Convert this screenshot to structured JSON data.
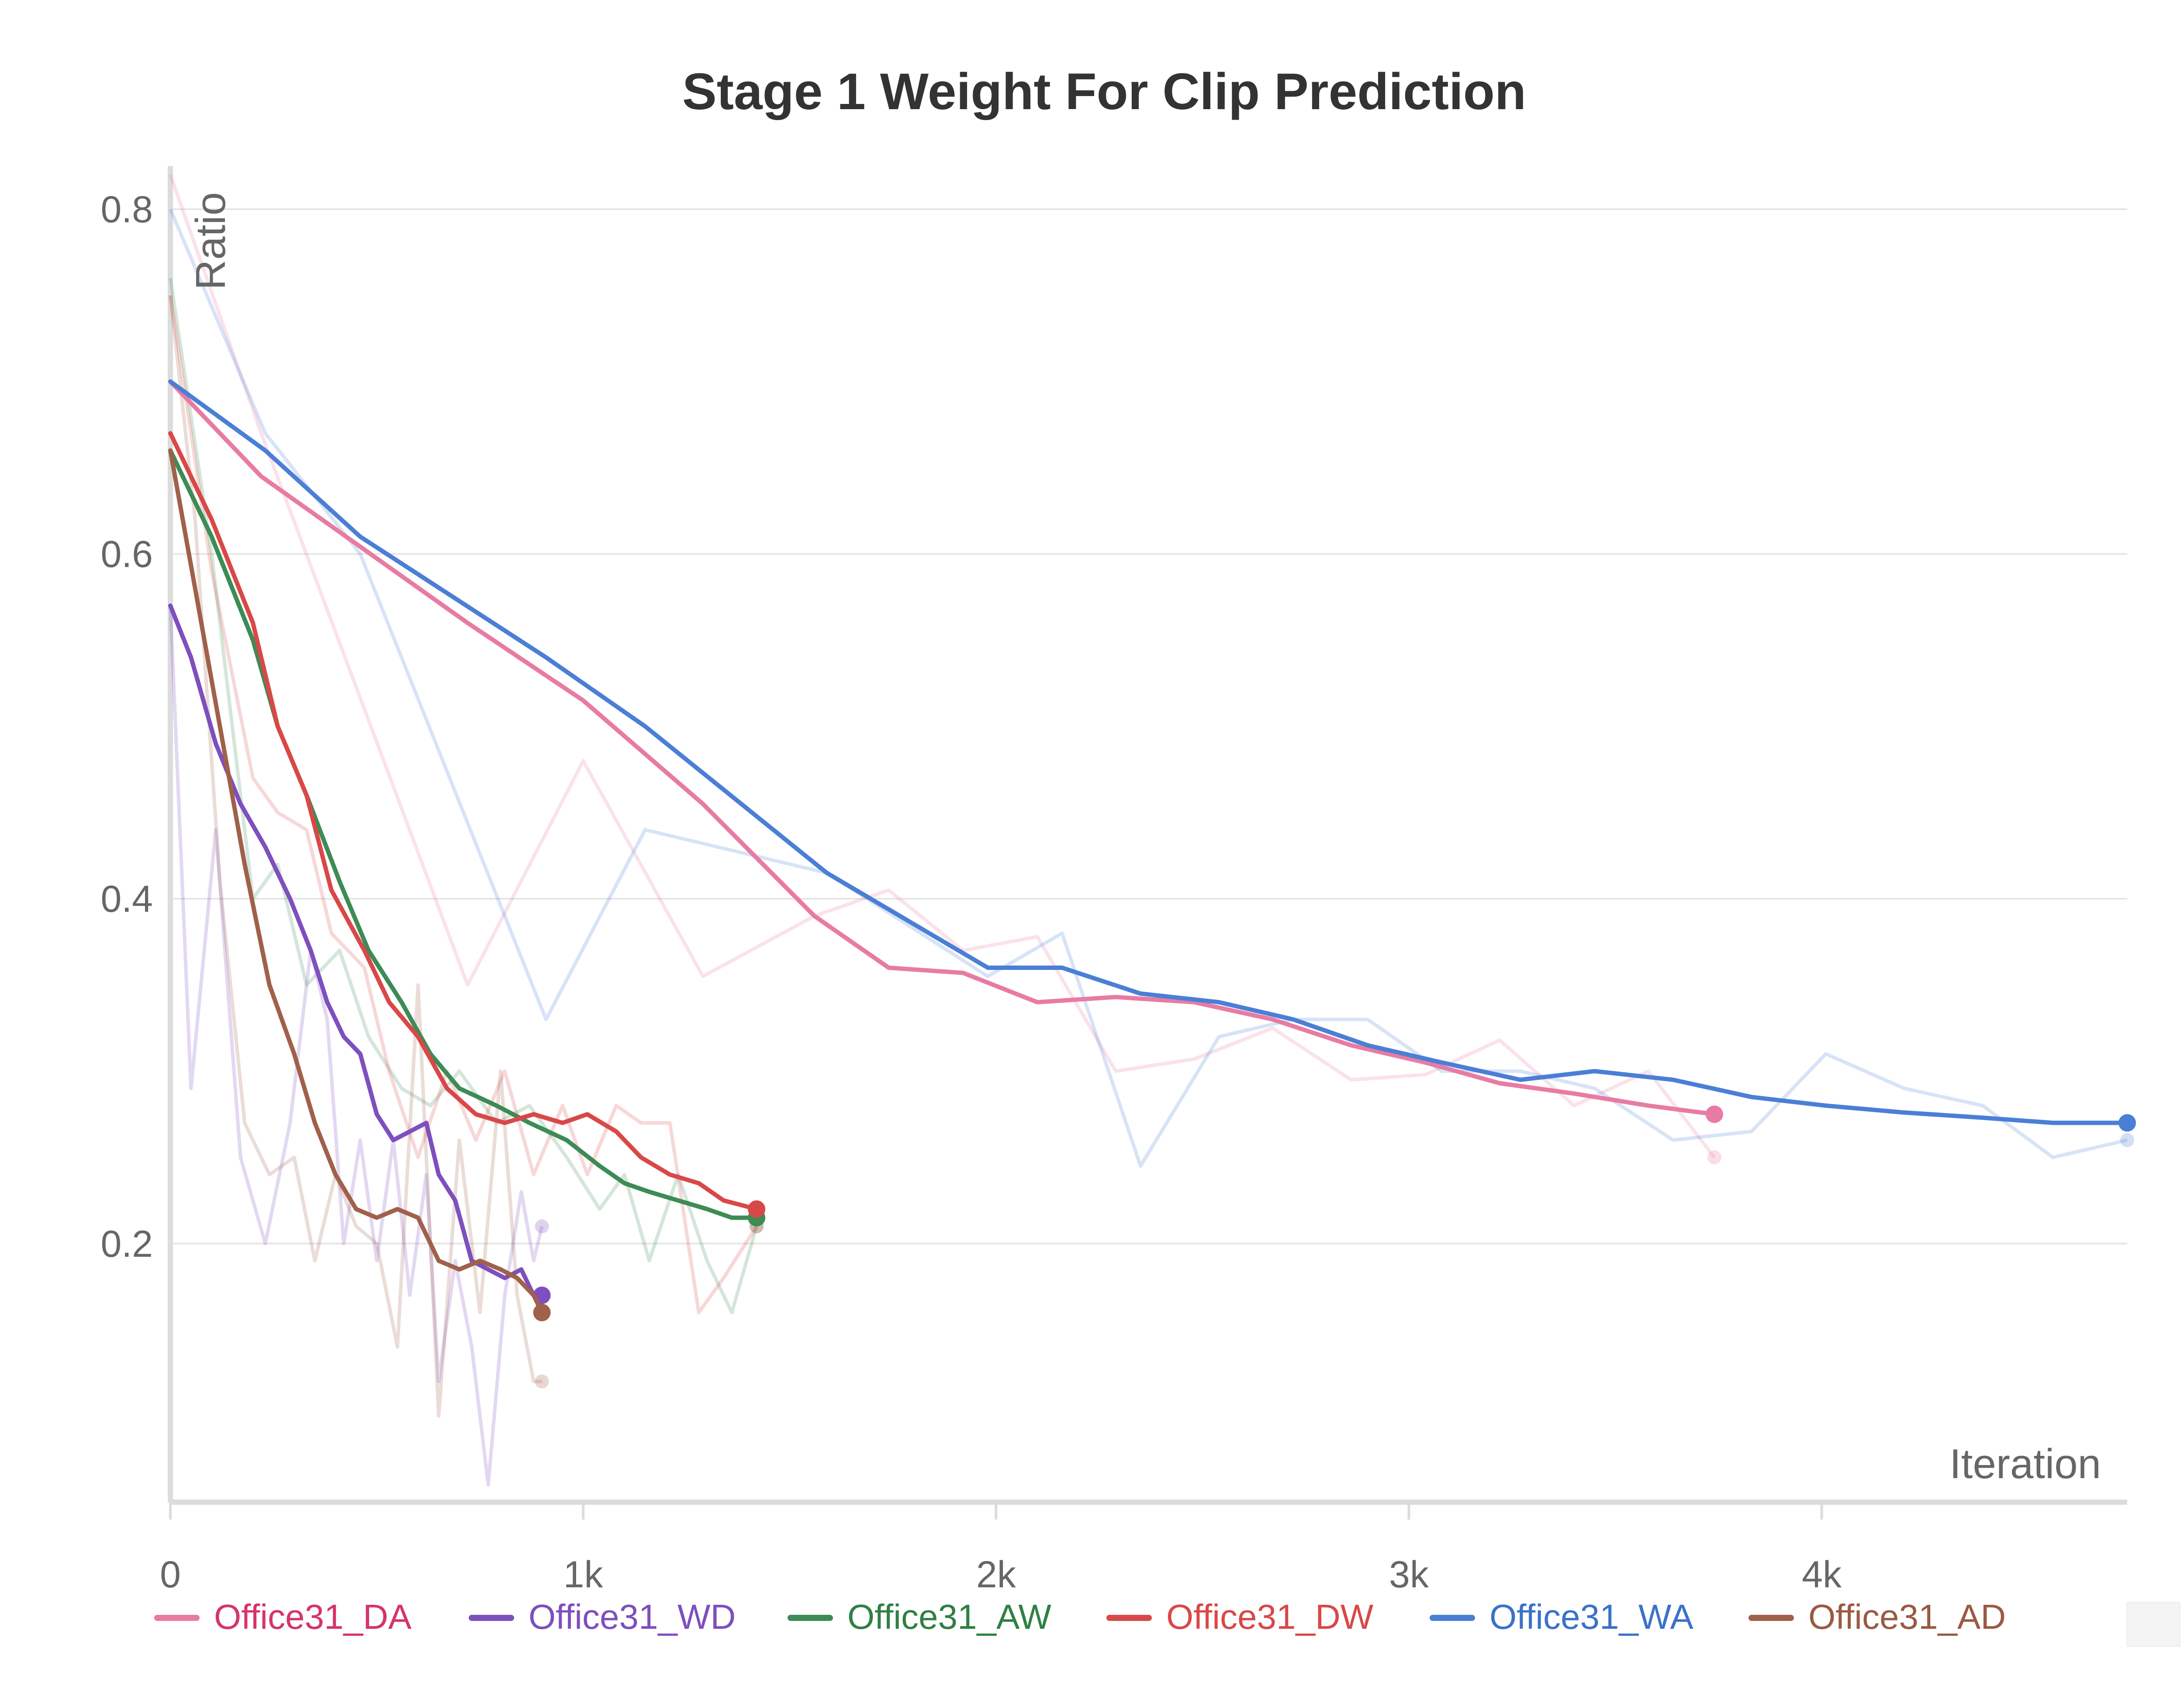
{
  "chart_data": {
    "type": "line",
    "title": "Stage 1 Weight For Clip Prediction",
    "xlabel": "Iteration",
    "ylabel": "Ratio",
    "xlim": [
      0,
      4740
    ],
    "ylim": [
      0.05,
      0.82
    ],
    "x_ticks": [
      {
        "value": 0,
        "label": "0"
      },
      {
        "value": 1000,
        "label": "1k"
      },
      {
        "value": 2000,
        "label": "2k"
      },
      {
        "value": 3000,
        "label": "3k"
      },
      {
        "value": 4000,
        "label": "4k"
      }
    ],
    "y_ticks": [
      {
        "value": 0.2,
        "label": "0.2"
      },
      {
        "value": 0.4,
        "label": "0.4"
      },
      {
        "value": 0.6,
        "label": "0.6"
      },
      {
        "value": 0.8,
        "label": "0.8"
      }
    ],
    "grid": true,
    "legend_position": "bottom",
    "series": [
      {
        "name": "Office31_DA",
        "color": "#e87ba4",
        "legend_text_color": "#d6336c",
        "x": [
          0,
          220,
          720,
          1000,
          1290,
          1560,
          1740,
          1920,
          2100,
          2290,
          2480,
          2670,
          2860,
          3040,
          3220,
          3400,
          3580,
          3740
        ],
        "y": [
          0.7,
          0.645,
          0.56,
          0.515,
          0.455,
          0.39,
          0.36,
          0.357,
          0.34,
          0.343,
          0.34,
          0.33,
          0.315,
          0.305,
          0.293,
          0.287,
          0.28,
          0.275
        ],
        "raw_y": [
          0.82,
          0.67,
          0.35,
          0.48,
          0.355,
          0.39,
          0.405,
          0.37,
          0.378,
          0.3,
          0.307,
          0.325,
          0.295,
          0.298,
          0.318,
          0.28,
          0.3,
          0.25
        ]
      },
      {
        "name": "Office31_WD",
        "color": "#7e4fbd",
        "legend_text_color": "#7e4fbd",
        "x": [
          0,
          50,
          110,
          170,
          230,
          290,
          340,
          380,
          420,
          460,
          500,
          540,
          580,
          620,
          650,
          690,
          730,
          770,
          810,
          850,
          880,
          900
        ],
        "y": [
          0.57,
          0.54,
          0.49,
          0.455,
          0.43,
          0.4,
          0.37,
          0.34,
          0.32,
          0.31,
          0.275,
          0.26,
          0.265,
          0.27,
          0.24,
          0.225,
          0.19,
          0.185,
          0.18,
          0.185,
          0.17,
          0.17
        ],
        "raw_y": [
          0.57,
          0.29,
          0.44,
          0.25,
          0.2,
          0.27,
          0.37,
          0.33,
          0.2,
          0.26,
          0.19,
          0.26,
          0.17,
          0.24,
          0.12,
          0.19,
          0.14,
          0.06,
          0.17,
          0.23,
          0.19,
          0.21
        ]
      },
      {
        "name": "Office31_AW",
        "color": "#3d8b55",
        "legend_text_color": "#2f8044",
        "x": [
          0,
          100,
          200,
          260,
          330,
          410,
          480,
          560,
          630,
          700,
          790,
          870,
          960,
          1040,
          1100,
          1160,
          1230,
          1300,
          1360,
          1420
        ],
        "y": [
          0.66,
          0.61,
          0.55,
          0.5,
          0.46,
          0.41,
          0.37,
          0.34,
          0.31,
          0.29,
          0.28,
          0.27,
          0.26,
          0.245,
          0.235,
          0.23,
          0.225,
          0.22,
          0.215,
          0.215
        ],
        "raw_y": [
          0.76,
          0.6,
          0.4,
          0.42,
          0.35,
          0.37,
          0.32,
          0.29,
          0.28,
          0.3,
          0.27,
          0.28,
          0.25,
          0.22,
          0.24,
          0.19,
          0.24,
          0.19,
          0.16,
          0.21
        ]
      },
      {
        "name": "Office31_DW",
        "color": "#d94848",
        "legend_text_color": "#d94848",
        "x": [
          0,
          100,
          200,
          260,
          330,
          390,
          470,
          530,
          600,
          670,
          740,
          810,
          880,
          950,
          1010,
          1080,
          1140,
          1210,
          1280,
          1340,
          1420
        ],
        "y": [
          0.67,
          0.62,
          0.56,
          0.5,
          0.46,
          0.405,
          0.37,
          0.34,
          0.32,
          0.29,
          0.275,
          0.27,
          0.275,
          0.27,
          0.275,
          0.265,
          0.25,
          0.24,
          0.235,
          0.225,
          0.22
        ],
        "raw_y": [
          0.75,
          0.59,
          0.47,
          0.45,
          0.44,
          0.38,
          0.36,
          0.3,
          0.25,
          0.3,
          0.26,
          0.3,
          0.24,
          0.28,
          0.24,
          0.28,
          0.27,
          0.27,
          0.16,
          0.18,
          0.21
        ]
      },
      {
        "name": "Office31_WA",
        "color": "#4b7fd6",
        "legend_text_color": "#3a72c9",
        "x": [
          0,
          230,
          460,
          910,
          1150,
          1590,
          1980,
          2160,
          2350,
          2540,
          2720,
          2900,
          3080,
          3270,
          3450,
          3640,
          3830,
          4010,
          4200,
          4390,
          4560,
          4740
        ],
        "y": [
          0.7,
          0.66,
          0.61,
          0.54,
          0.5,
          0.415,
          0.36,
          0.36,
          0.345,
          0.34,
          0.33,
          0.315,
          0.305,
          0.295,
          0.3,
          0.295,
          0.285,
          0.28,
          0.276,
          0.273,
          0.27,
          0.27
        ],
        "raw_y": [
          0.8,
          0.67,
          0.6,
          0.33,
          0.44,
          0.415,
          0.355,
          0.38,
          0.245,
          0.32,
          0.33,
          0.33,
          0.3,
          0.3,
          0.29,
          0.26,
          0.265,
          0.31,
          0.29,
          0.28,
          0.25,
          0.26
        ]
      },
      {
        "name": "Office31_AD",
        "color": "#a0604a",
        "legend_text_color": "#9a5a43",
        "x": [
          0,
          60,
          120,
          180,
          240,
          300,
          350,
          400,
          450,
          500,
          550,
          600,
          650,
          700,
          750,
          800,
          840,
          880,
          900
        ],
        "y": [
          0.66,
          0.58,
          0.5,
          0.42,
          0.35,
          0.31,
          0.27,
          0.24,
          0.22,
          0.215,
          0.22,
          0.215,
          0.19,
          0.185,
          0.19,
          0.185,
          0.18,
          0.17,
          0.16
        ],
        "raw_y": [
          0.75,
          0.62,
          0.41,
          0.27,
          0.24,
          0.25,
          0.19,
          0.24,
          0.21,
          0.2,
          0.14,
          0.35,
          0.1,
          0.26,
          0.16,
          0.3,
          0.17,
          0.12,
          0.12
        ]
      }
    ]
  }
}
